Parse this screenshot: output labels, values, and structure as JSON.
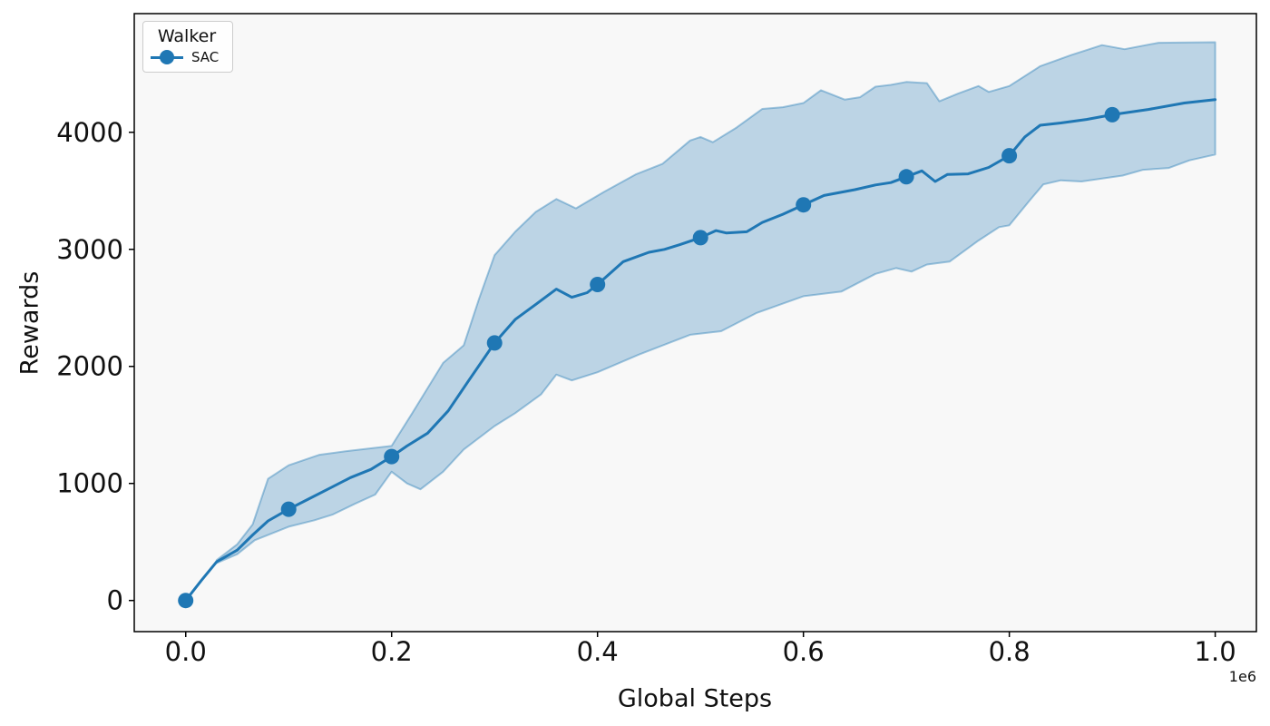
{
  "legend": {
    "title": "Walker",
    "entries": [
      {
        "label": "SAC",
        "color": "#1f77b4"
      }
    ]
  },
  "chart_data": {
    "type": "line",
    "title": "",
    "xlabel": "Global Steps",
    "ylabel": "Rewards",
    "x_scale_label": "1e6",
    "x_units": "steps (millions)",
    "xlim": [
      -0.05,
      1.04
    ],
    "ylim": [
      -266,
      5014
    ],
    "grid": false,
    "legend_position": "upper left",
    "x_ticks": [
      0.0,
      0.2,
      0.4,
      0.6,
      0.8,
      1.0
    ],
    "x_tick_labels": [
      "0.0",
      "0.2",
      "0.4",
      "0.6",
      "0.8",
      "1.0"
    ],
    "y_ticks": [
      0,
      1000,
      2000,
      3000,
      4000
    ],
    "y_tick_labels": [
      "0",
      "1000",
      "2000",
      "3000",
      "4000"
    ],
    "colors": {
      "line": "#1f77b4",
      "band_fill_alpha": 0.28,
      "band_edge_alpha": 0.4,
      "axes_background": "#f8f8f8",
      "figure_background": "#ffffff",
      "spine": "#000000",
      "tick_label": "#111111"
    },
    "series": [
      {
        "name": "SAC",
        "line": [
          [
            0.0,
            0
          ],
          [
            0.015,
            170
          ],
          [
            0.03,
            330
          ],
          [
            0.05,
            430
          ],
          [
            0.065,
            560
          ],
          [
            0.08,
            680
          ],
          [
            0.1,
            780
          ],
          [
            0.12,
            870
          ],
          [
            0.14,
            960
          ],
          [
            0.16,
            1050
          ],
          [
            0.18,
            1120
          ],
          [
            0.2,
            1230
          ],
          [
            0.215,
            1320
          ],
          [
            0.235,
            1430
          ],
          [
            0.255,
            1620
          ],
          [
            0.275,
            1880
          ],
          [
            0.3,
            2200
          ],
          [
            0.32,
            2400
          ],
          [
            0.34,
            2530
          ],
          [
            0.36,
            2660
          ],
          [
            0.375,
            2590
          ],
          [
            0.39,
            2630
          ],
          [
            0.4,
            2700
          ],
          [
            0.425,
            2895
          ],
          [
            0.45,
            2975
          ],
          [
            0.465,
            3000
          ],
          [
            0.48,
            3040
          ],
          [
            0.5,
            3100
          ],
          [
            0.515,
            3160
          ],
          [
            0.525,
            3140
          ],
          [
            0.545,
            3150
          ],
          [
            0.56,
            3230
          ],
          [
            0.58,
            3300
          ],
          [
            0.6,
            3380
          ],
          [
            0.62,
            3460
          ],
          [
            0.65,
            3510
          ],
          [
            0.67,
            3550
          ],
          [
            0.685,
            3570
          ],
          [
            0.7,
            3620
          ],
          [
            0.715,
            3670
          ],
          [
            0.728,
            3580
          ],
          [
            0.74,
            3640
          ],
          [
            0.76,
            3645
          ],
          [
            0.78,
            3700
          ],
          [
            0.8,
            3800
          ],
          [
            0.815,
            3960
          ],
          [
            0.83,
            4060
          ],
          [
            0.85,
            4080
          ],
          [
            0.875,
            4110
          ],
          [
            0.9,
            4150
          ],
          [
            0.935,
            4195
          ],
          [
            0.97,
            4250
          ],
          [
            1.0,
            4280
          ]
        ],
        "markers": [
          [
            0.0,
            0
          ],
          [
            0.1,
            780
          ],
          [
            0.2,
            1230
          ],
          [
            0.3,
            2200
          ],
          [
            0.4,
            2700
          ],
          [
            0.5,
            3100
          ],
          [
            0.6,
            3380
          ],
          [
            0.7,
            3620
          ],
          [
            0.8,
            3800
          ],
          [
            0.9,
            4150
          ]
        ],
        "band_upper": [
          [
            0.03,
            345
          ],
          [
            0.05,
            480
          ],
          [
            0.065,
            650
          ],
          [
            0.08,
            1040
          ],
          [
            0.1,
            1155
          ],
          [
            0.13,
            1245
          ],
          [
            0.16,
            1280
          ],
          [
            0.2,
            1320
          ],
          [
            0.22,
            1600
          ],
          [
            0.25,
            2030
          ],
          [
            0.27,
            2180
          ],
          [
            0.285,
            2580
          ],
          [
            0.3,
            2950
          ],
          [
            0.32,
            3150
          ],
          [
            0.34,
            3320
          ],
          [
            0.36,
            3430
          ],
          [
            0.379,
            3350
          ],
          [
            0.406,
            3490
          ],
          [
            0.437,
            3640
          ],
          [
            0.463,
            3730
          ],
          [
            0.49,
            3930
          ],
          [
            0.5,
            3960
          ],
          [
            0.512,
            3915
          ],
          [
            0.535,
            4040
          ],
          [
            0.56,
            4200
          ],
          [
            0.58,
            4215
          ],
          [
            0.6,
            4250
          ],
          [
            0.617,
            4360
          ],
          [
            0.64,
            4280
          ],
          [
            0.655,
            4300
          ],
          [
            0.67,
            4390
          ],
          [
            0.685,
            4405
          ],
          [
            0.7,
            4430
          ],
          [
            0.72,
            4420
          ],
          [
            0.732,
            4265
          ],
          [
            0.75,
            4330
          ],
          [
            0.77,
            4395
          ],
          [
            0.78,
            4345
          ],
          [
            0.8,
            4395
          ],
          [
            0.83,
            4565
          ],
          [
            0.86,
            4660
          ],
          [
            0.89,
            4745
          ],
          [
            0.912,
            4710
          ],
          [
            0.945,
            4765
          ],
          [
            1.0,
            4770
          ]
        ],
        "band_lower": [
          [
            0.03,
            320
          ],
          [
            0.05,
            395
          ],
          [
            0.067,
            515
          ],
          [
            0.1,
            630
          ],
          [
            0.125,
            685
          ],
          [
            0.143,
            735
          ],
          [
            0.164,
            825
          ],
          [
            0.184,
            905
          ],
          [
            0.2,
            1100
          ],
          [
            0.215,
            1000
          ],
          [
            0.228,
            950
          ],
          [
            0.25,
            1100
          ],
          [
            0.27,
            1290
          ],
          [
            0.3,
            1490
          ],
          [
            0.32,
            1600
          ],
          [
            0.345,
            1760
          ],
          [
            0.36,
            1930
          ],
          [
            0.375,
            1880
          ],
          [
            0.4,
            1950
          ],
          [
            0.44,
            2100
          ],
          [
            0.49,
            2270
          ],
          [
            0.52,
            2300
          ],
          [
            0.554,
            2455
          ],
          [
            0.6,
            2600
          ],
          [
            0.637,
            2640
          ],
          [
            0.67,
            2790
          ],
          [
            0.69,
            2840
          ],
          [
            0.705,
            2810
          ],
          [
            0.72,
            2870
          ],
          [
            0.742,
            2895
          ],
          [
            0.77,
            3075
          ],
          [
            0.79,
            3190
          ],
          [
            0.8,
            3205
          ],
          [
            0.82,
            3420
          ],
          [
            0.833,
            3555
          ],
          [
            0.85,
            3590
          ],
          [
            0.87,
            3580
          ],
          [
            0.91,
            3630
          ],
          [
            0.93,
            3680
          ],
          [
            0.955,
            3695
          ],
          [
            0.975,
            3760
          ],
          [
            1.0,
            3810
          ]
        ]
      }
    ]
  }
}
